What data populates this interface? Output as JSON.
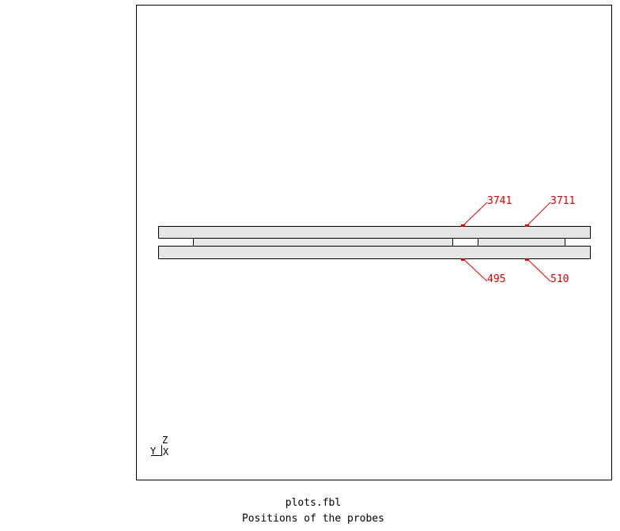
{
  "caption": {
    "file": "plots.fbl",
    "title": "Positions of the probes"
  },
  "axes": {
    "z": "Z",
    "y": "Y",
    "x": "X"
  },
  "probes": [
    {
      "id": "3741",
      "side": "top"
    },
    {
      "id": "3711",
      "side": "top"
    },
    {
      "id": "495",
      "side": "bottom"
    },
    {
      "id": "510",
      "side": "bottom"
    }
  ],
  "colors": {
    "probe": "#dd0000",
    "plate_fill": "#e6e6e6",
    "outline": "#000000"
  }
}
